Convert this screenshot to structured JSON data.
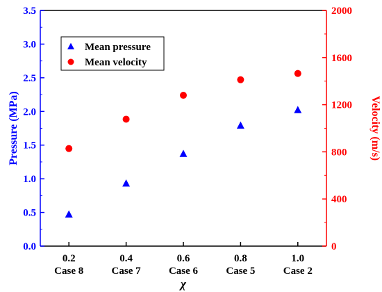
{
  "chart_data": {
    "type": "scatter",
    "x": [
      0.2,
      0.4,
      0.6,
      0.8,
      1.0
    ],
    "x_tick_labels": [
      "0.2",
      "0.4",
      "0.6",
      "0.8",
      "1.0"
    ],
    "x_case_labels": [
      "Case 8",
      "Case 7",
      "Case 6",
      "Case 5",
      "Case 2"
    ],
    "xlabel": "χ",
    "xlim": [
      0.1,
      1.1
    ],
    "y_left": {
      "label": "Pressure (MPa)",
      "lim": [
        0,
        3.5
      ],
      "ticks": [
        0,
        0.5,
        1.0,
        1.5,
        2.0,
        2.5,
        3.0,
        3.5
      ],
      "tick_labels": [
        "0.0",
        "0.5",
        "1.0",
        "1.5",
        "2.0",
        "2.5",
        "3.0",
        "3.5"
      ],
      "color": "#0000ff"
    },
    "y_right": {
      "label": "Velocity (m/s)",
      "lim": [
        0,
        2000
      ],
      "ticks": [
        0,
        400,
        800,
        1200,
        1600,
        2000
      ],
      "tick_labels": [
        "0",
        "400",
        "800",
        "1200",
        "1600",
        "2000"
      ],
      "color": "#ff0000"
    },
    "series": [
      {
        "name": "Mean pressure",
        "axis": "left",
        "marker": "triangle",
        "color": "#0000ff",
        "values": [
          0.47,
          0.93,
          1.37,
          1.79,
          2.02
        ]
      },
      {
        "name": "Mean velocity",
        "axis": "right",
        "marker": "circle",
        "color": "#ff0000",
        "values": [
          828,
          1077,
          1280,
          1412,
          1465
        ]
      }
    ],
    "legend": "top-left",
    "grid": false
  }
}
